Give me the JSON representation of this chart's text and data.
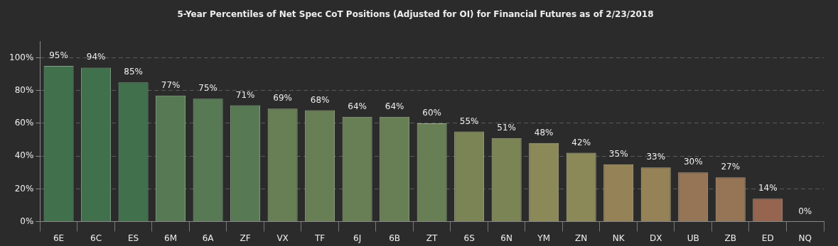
{
  "chart_data": {
    "type": "bar",
    "title": "5-Year Percentiles of Net Spec CoT Positions (Adjusted for OI) for Financial Futures as of 2/23/2018",
    "categories": [
      "6E",
      "6C",
      "ES",
      "6M",
      "6A",
      "ZF",
      "VX",
      "TF",
      "6J",
      "6B",
      "ZT",
      "6S",
      "6N",
      "YM",
      "ZN",
      "NK",
      "DX",
      "UB",
      "ZB",
      "ED",
      "NQ"
    ],
    "values": [
      95,
      94,
      85,
      77,
      75,
      71,
      69,
      68,
      64,
      64,
      60,
      55,
      51,
      48,
      42,
      35,
      33,
      30,
      27,
      14,
      0
    ],
    "value_labels": [
      "95%",
      "94%",
      "85%",
      "77%",
      "75%",
      "71%",
      "69%",
      "68%",
      "64%",
      "64%",
      "60%",
      "55%",
      "51%",
      "48%",
      "42%",
      "35%",
      "33%",
      "30%",
      "27%",
      "14%",
      "0%"
    ],
    "colors": [
      "#41704d",
      "#41704d",
      "#41704d",
      "#577a54",
      "#577a54",
      "#577a54",
      "#687f55",
      "#687f55",
      "#687f55",
      "#687f55",
      "#687f55",
      "#7b8455",
      "#7b8455",
      "#8c8959",
      "#8c8959",
      "#958256",
      "#958256",
      "#957556",
      "#957556",
      "#956550",
      "#956550"
    ],
    "ylim": [
      0,
      110
    ],
    "yticks": [
      {
        "value": 0,
        "label": "0%"
      },
      {
        "value": 20,
        "label": "20%"
      },
      {
        "value": 40,
        "label": "40%"
      },
      {
        "value": 60,
        "label": "60%"
      },
      {
        "value": 80,
        "label": "80%"
      },
      {
        "value": 100,
        "label": "100%"
      }
    ],
    "grid": "y",
    "legend": false
  }
}
